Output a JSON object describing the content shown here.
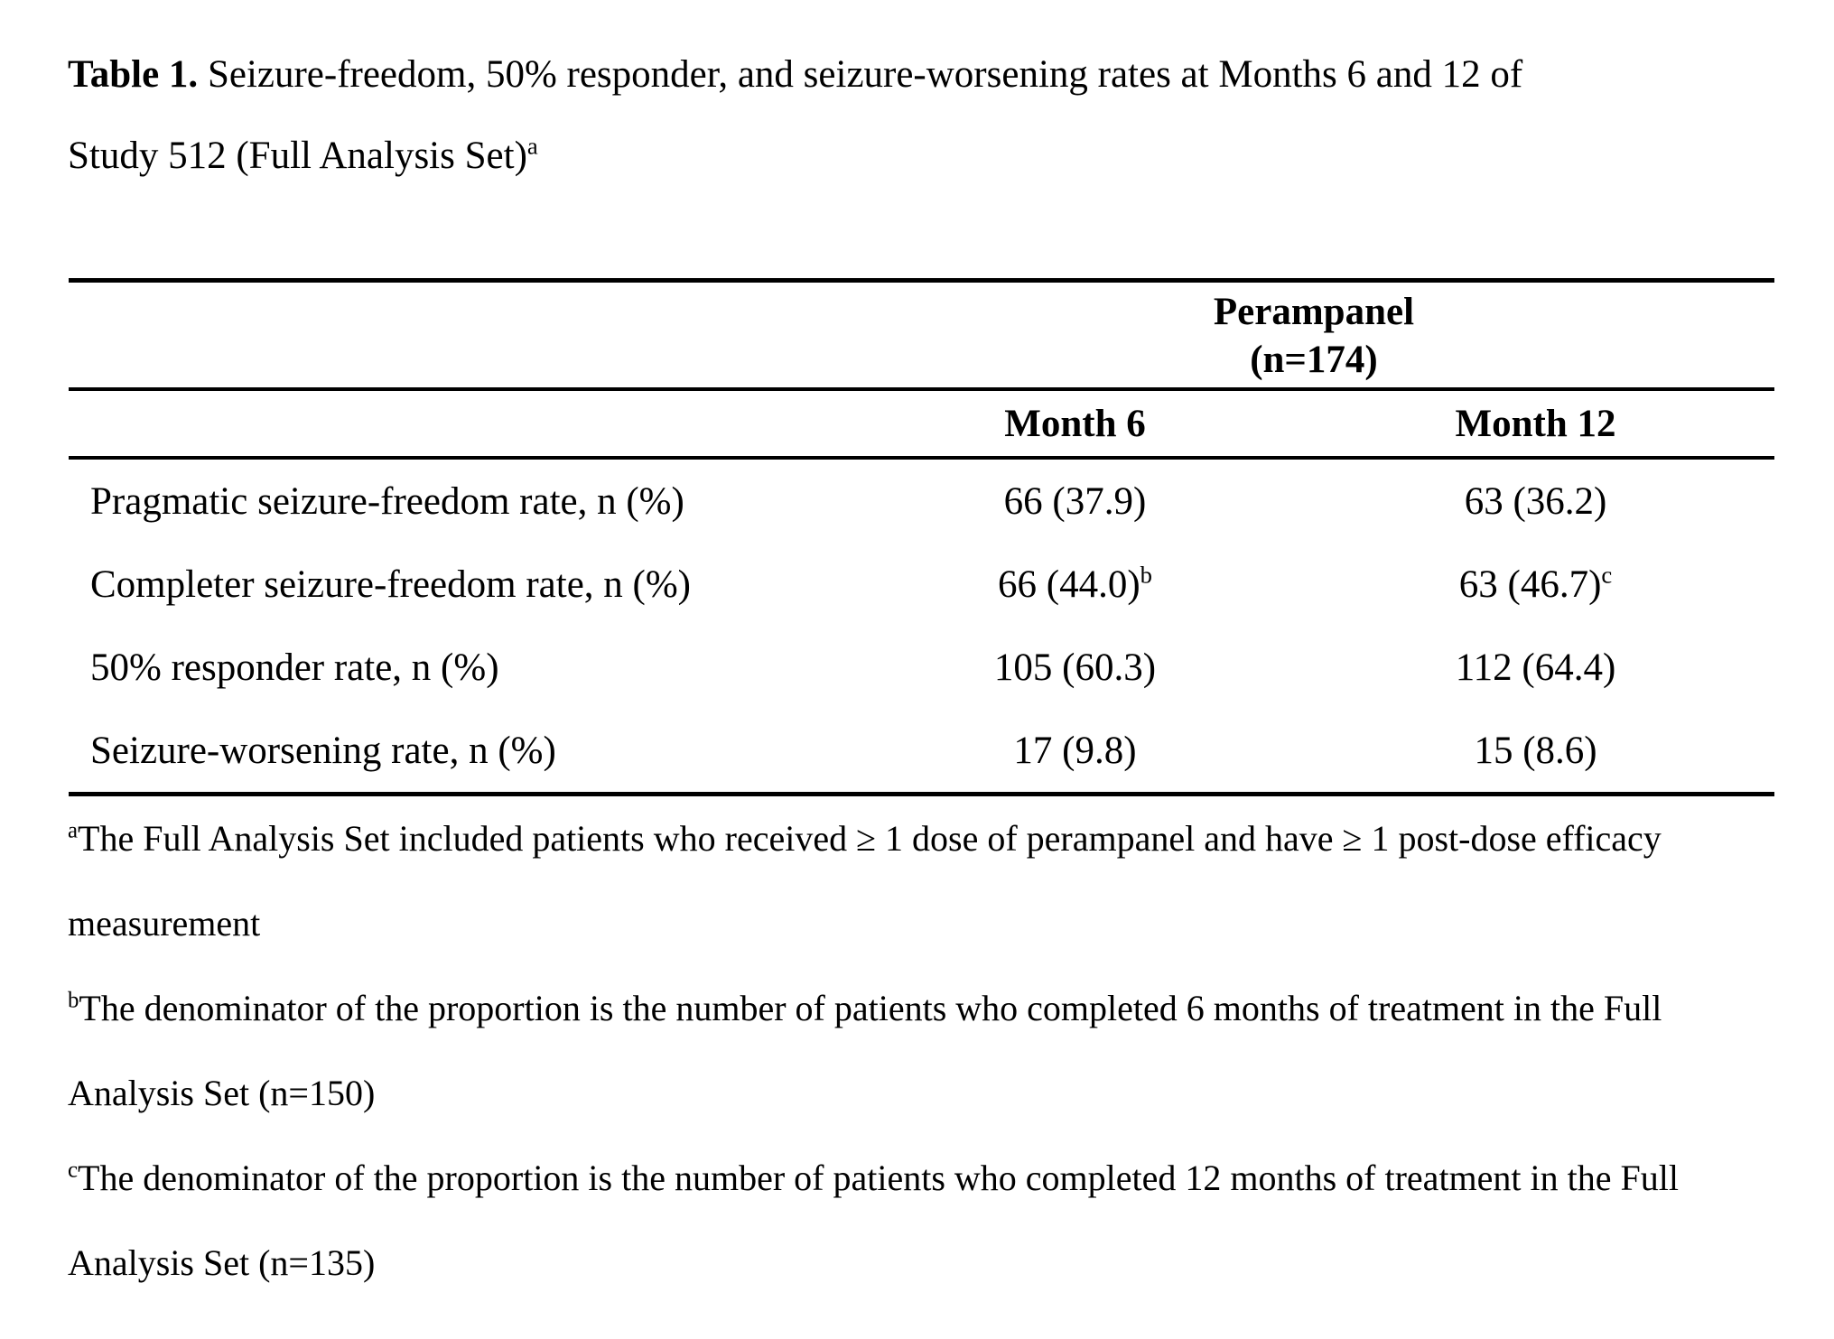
{
  "page": {
    "background_color": "#ffffff",
    "text_color": "#000000"
  },
  "title": {
    "label": "Table 1.",
    "line1_rest": "Seizure-freedom, 50% responder, and seizure-worsening rates at Months 6 and 12 of",
    "line2": "Study 512 (Full Analysis Set)",
    "superscript": "a"
  },
  "table": {
    "group_header": {
      "drug": "Perampanel",
      "n": "(n=174)"
    },
    "column_headers": [
      "Month 6",
      "Month 12"
    ],
    "rows": [
      {
        "label": "Pragmatic seizure-freedom rate, n (%)",
        "values": [
          {
            "text": "66 (37.9)",
            "sup": ""
          },
          {
            "text": "63 (36.2)",
            "sup": ""
          }
        ]
      },
      {
        "label": "Completer seizure-freedom rate, n (%)",
        "values": [
          {
            "text": "66 (44.0)",
            "sup": "b"
          },
          {
            "text": "63 (46.7)",
            "sup": "c"
          }
        ]
      },
      {
        "label": "50% responder rate, n (%)",
        "values": [
          {
            "text": "105 (60.3)",
            "sup": ""
          },
          {
            "text": "112 (64.4)",
            "sup": ""
          }
        ]
      },
      {
        "label": "Seizure-worsening rate, n (%)",
        "values": [
          {
            "text": "17 (9.8)",
            "sup": ""
          },
          {
            "text": "15 (8.6)",
            "sup": ""
          }
        ]
      }
    ]
  },
  "footnotes": [
    {
      "marker": "a",
      "line1": "The Full Analysis Set included patients who received ≥ 1 dose of perampanel and have ≥ 1 post-dose efficacy",
      "line2": "measurement"
    },
    {
      "marker": "b",
      "line1": "The denominator of the proportion is the number of patients who completed 6 months of treatment in the Full",
      "line2": "Analysis Set (n=150)"
    },
    {
      "marker": "c",
      "line1": "The denominator of the proportion is the number of patients who completed 12 months of treatment in the Full",
      "line2": "Analysis Set (n=135)"
    }
  ]
}
